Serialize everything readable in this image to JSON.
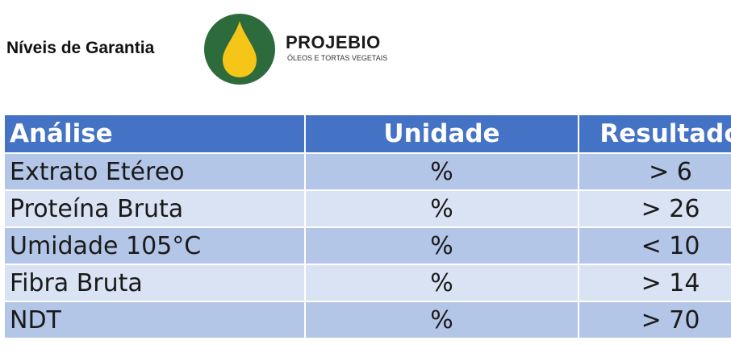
{
  "page": {
    "title": "Níveis de Garantia"
  },
  "brand": {
    "name": "PROJEBIO",
    "tagline": "ÓLEOS E TORTAS VEGETAIS",
    "logo_icon": "oil-drop-icon",
    "colors": {
      "circle": "#2e6b3c",
      "drop": "#f5c518"
    }
  },
  "table": {
    "header_color": "#4472c4",
    "row_color_odd": "#b4c6e7",
    "row_color_even": "#dae3f3",
    "columns": [
      "Análise",
      "Unidade",
      "Resultado"
    ],
    "rows": [
      {
        "analise": "Extrato Etéreo",
        "unidade": "%",
        "resultado": "> 6"
      },
      {
        "analise": "Proteína Bruta",
        "unidade": "%",
        "resultado": "> 26"
      },
      {
        "analise": "Umidade 105°C",
        "unidade": "%",
        "resultado": "< 10"
      },
      {
        "analise": "Fibra Bruta",
        "unidade": "%",
        "resultado": "> 14"
      },
      {
        "analise": "NDT",
        "unidade": "%",
        "resultado": "> 70"
      }
    ]
  }
}
